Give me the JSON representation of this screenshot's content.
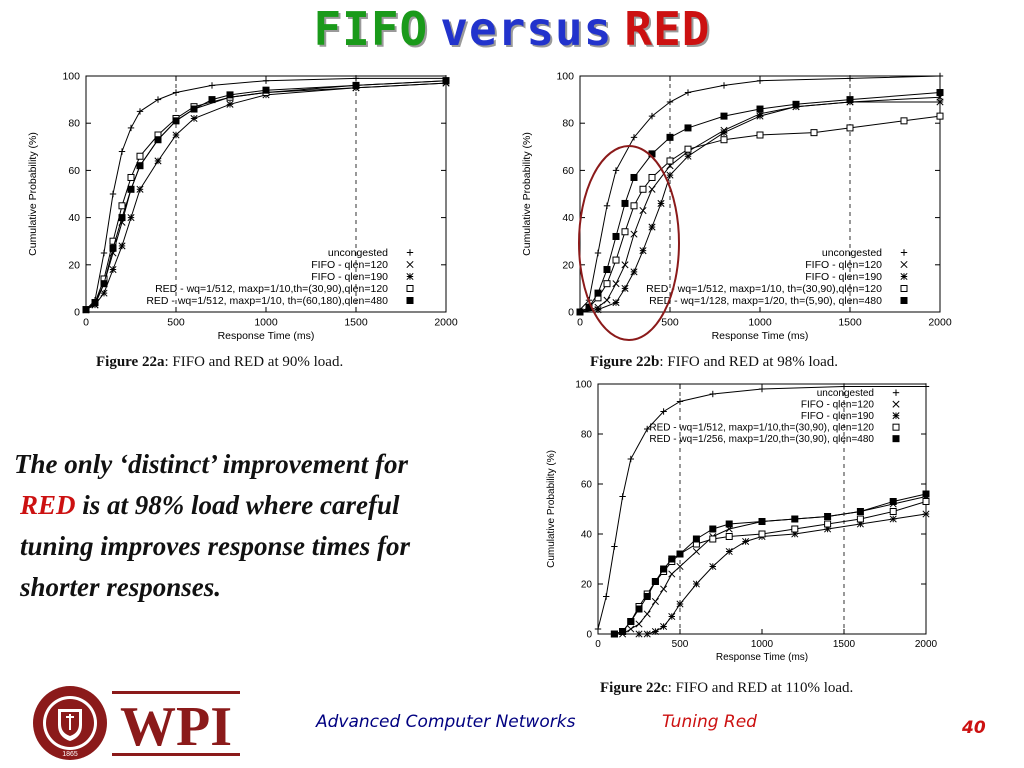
{
  "slide": {
    "title_parts": [
      {
        "text": "FIFO",
        "color": "#1a9a1a"
      },
      {
        "text": "versus",
        "color": "#2233cc"
      },
      {
        "text": "RED",
        "color": "#cc1111"
      }
    ],
    "body_lines": [
      [
        {
          "text": "The only ‘distinct’ improvement for",
          "color": "#111111"
        }
      ],
      [
        {
          "text": "RED",
          "color": "#cc1111"
        },
        {
          "text": " is at 98% load where careful",
          "color": "#111111"
        }
      ],
      [
        {
          "text": "tuning improves response times for",
          "color": "#111111"
        }
      ],
      [
        {
          "text": "shorter responses.",
          "color": "#111111"
        }
      ]
    ],
    "footer": {
      "course": "Advanced Computer Networks",
      "topic": "Tuning Red",
      "page": "40"
    },
    "logo": {
      "text": "WPI",
      "ring_text": "WORCESTER POLYTECHNIC INSTITUTE",
      "year": "1865",
      "color": "#8b1a1a"
    },
    "colors": {
      "accent_red": "#cc1111",
      "ellipse": "#8b1a1a",
      "footer_blue": "#000080"
    }
  },
  "chart_data": [
    {
      "type": "line",
      "caption_bold": "Figure 22a",
      "caption_rest": ": FIFO and RED at 90% load.",
      "xlabel": "Response Time (ms)",
      "ylabel": "Cumulative Probability (%)",
      "xlim": [
        0,
        2000
      ],
      "ylim": [
        0,
        100
      ],
      "xticks": [
        0,
        500,
        1000,
        1500,
        2000
      ],
      "yticks": [
        0,
        20,
        40,
        60,
        80,
        100
      ],
      "grid": "dashed at x=500,1500",
      "legend": "bottom-right",
      "series": [
        {
          "name": "uncongested",
          "marker": "+",
          "values": [
            [
              0,
              1
            ],
            [
              50,
              5
            ],
            [
              100,
              25
            ],
            [
              150,
              50
            ],
            [
              200,
              68
            ],
            [
              250,
              78
            ],
            [
              300,
              85
            ],
            [
              400,
              90
            ],
            [
              500,
              93
            ],
            [
              700,
              96
            ],
            [
              1000,
              98
            ],
            [
              1500,
              99
            ],
            [
              2000,
              99
            ]
          ]
        },
        {
          "name": "FIFO - qlen=120",
          "marker": "x",
          "values": [
            [
              0,
              1
            ],
            [
              50,
              3
            ],
            [
              100,
              12
            ],
            [
              150,
              25
            ],
            [
              200,
              38
            ],
            [
              250,
              52
            ],
            [
              300,
              62
            ],
            [
              400,
              73
            ],
            [
              500,
              81
            ],
            [
              600,
              86
            ],
            [
              800,
              91
            ],
            [
              1000,
              93
            ],
            [
              1500,
              95
            ],
            [
              2000,
              97
            ]
          ]
        },
        {
          "name": "FIFO - qlen=190",
          "marker": "*",
          "values": [
            [
              0,
              1
            ],
            [
              50,
              3
            ],
            [
              100,
              8
            ],
            [
              150,
              18
            ],
            [
              200,
              28
            ],
            [
              250,
              40
            ],
            [
              300,
              52
            ],
            [
              400,
              64
            ],
            [
              500,
              75
            ],
            [
              600,
              82
            ],
            [
              800,
              88
            ],
            [
              1000,
              92
            ],
            [
              1500,
              95
            ],
            [
              2000,
              97
            ]
          ]
        },
        {
          "name": "RED - wq=1/512, maxp=1/10,th=(30,90),qlen=120",
          "marker": "box",
          "values": [
            [
              0,
              1
            ],
            [
              50,
              4
            ],
            [
              100,
              14
            ],
            [
              150,
              30
            ],
            [
              200,
              45
            ],
            [
              250,
              57
            ],
            [
              300,
              66
            ],
            [
              400,
              75
            ],
            [
              500,
              82
            ],
            [
              600,
              87
            ],
            [
              800,
              91
            ],
            [
              1000,
              93
            ],
            [
              1500,
              96
            ],
            [
              2000,
              98
            ]
          ]
        },
        {
          "name": "RED - wq=1/512, maxp=1/10, th=(60,180),qlen=480",
          "marker": "fbox",
          "values": [
            [
              0,
              1
            ],
            [
              50,
              4
            ],
            [
              100,
              12
            ],
            [
              150,
              27
            ],
            [
              200,
              40
            ],
            [
              250,
              52
            ],
            [
              300,
              62
            ],
            [
              400,
              73
            ],
            [
              500,
              81
            ],
            [
              600,
              86
            ],
            [
              700,
              90
            ],
            [
              800,
              92
            ],
            [
              1000,
              94
            ],
            [
              1500,
              96
            ],
            [
              2000,
              98
            ]
          ]
        }
      ]
    },
    {
      "type": "line",
      "caption_bold": "Figure 22b",
      "caption_rest": ": FIFO and RED at 98% load.",
      "xlabel": "Response Time (ms)",
      "ylabel": "Cumulative Probability (%)",
      "xlim": [
        0,
        2000
      ],
      "ylim": [
        0,
        100
      ],
      "xticks": [
        0,
        500,
        1000,
        1500,
        2000
      ],
      "yticks": [
        0,
        20,
        40,
        60,
        80,
        100
      ],
      "grid": "dashed at x=500,1500",
      "legend": "bottom-right",
      "annotation": "red ellipse around 0-550 ms",
      "series": [
        {
          "name": "uncongested",
          "marker": "+",
          "values": [
            [
              0,
              1
            ],
            [
              50,
              5
            ],
            [
              100,
              25
            ],
            [
              150,
              45
            ],
            [
              200,
              60
            ],
            [
              300,
              74
            ],
            [
              400,
              83
            ],
            [
              500,
              89
            ],
            [
              600,
              93
            ],
            [
              800,
              96
            ],
            [
              1000,
              98
            ],
            [
              1500,
              99
            ],
            [
              2000,
              100
            ]
          ]
        },
        {
          "name": "FIFO - qlen=120",
          "marker": "x",
          "values": [
            [
              0,
              0
            ],
            [
              100,
              2
            ],
            [
              150,
              5
            ],
            [
              200,
              12
            ],
            [
              250,
              20
            ],
            [
              300,
              33
            ],
            [
              350,
              43
            ],
            [
              400,
              52
            ],
            [
              500,
              62
            ],
            [
              600,
              68
            ],
            [
              800,
              77
            ],
            [
              1000,
              84
            ],
            [
              1200,
              87
            ],
            [
              1500,
              89
            ],
            [
              2000,
              91
            ]
          ]
        },
        {
          "name": "FIFO - qlen=190",
          "marker": "*",
          "values": [
            [
              0,
              0
            ],
            [
              100,
              1
            ],
            [
              200,
              4
            ],
            [
              250,
              10
            ],
            [
              300,
              17
            ],
            [
              350,
              26
            ],
            [
              400,
              36
            ],
            [
              450,
              46
            ],
            [
              500,
              58
            ],
            [
              600,
              66
            ],
            [
              800,
              76
            ],
            [
              1000,
              83
            ],
            [
              1200,
              87
            ],
            [
              1500,
              89
            ],
            [
              2000,
              89
            ]
          ]
        },
        {
          "name": "RED - wq=1/512, maxp=1/10, th=(30,90),qlen=120",
          "marker": "box",
          "values": [
            [
              0,
              0
            ],
            [
              50,
              2
            ],
            [
              100,
              6
            ],
            [
              150,
              12
            ],
            [
              200,
              22
            ],
            [
              250,
              34
            ],
            [
              300,
              45
            ],
            [
              350,
              52
            ],
            [
              400,
              57
            ],
            [
              500,
              64
            ],
            [
              600,
              69
            ],
            [
              800,
              73
            ],
            [
              1000,
              75
            ],
            [
              1300,
              76
            ],
            [
              1500,
              78
            ],
            [
              1800,
              81
            ],
            [
              2000,
              83
            ]
          ]
        },
        {
          "name": "RED - wq=1/128, maxp=1/20, th=(5,90), qlen=480",
          "marker": "fbox",
          "values": [
            [
              0,
              0
            ],
            [
              50,
              2
            ],
            [
              100,
              8
            ],
            [
              150,
              18
            ],
            [
              200,
              32
            ],
            [
              250,
              46
            ],
            [
              300,
              57
            ],
            [
              400,
              67
            ],
            [
              500,
              74
            ],
            [
              600,
              78
            ],
            [
              800,
              83
            ],
            [
              1000,
              86
            ],
            [
              1200,
              88
            ],
            [
              1500,
              90
            ],
            [
              2000,
              93
            ]
          ]
        }
      ]
    },
    {
      "type": "line",
      "caption_bold": "Figure 22c",
      "caption_rest": ": FIFO and RED at 110% load.",
      "xlabel": "Response Time (ms)",
      "ylabel": "Cumulative Probability (%)",
      "xlim": [
        0,
        2000
      ],
      "ylim": [
        0,
        100
      ],
      "xticks": [
        0,
        500,
        1000,
        1500,
        2000
      ],
      "yticks": [
        0,
        20,
        40,
        60,
        80,
        100
      ],
      "grid": "dashed at x=500,1500",
      "legend": "top-right",
      "series": [
        {
          "name": "uncongested",
          "marker": "+",
          "values": [
            [
              0,
              2
            ],
            [
              50,
              15
            ],
            [
              100,
              35
            ],
            [
              150,
              55
            ],
            [
              200,
              70
            ],
            [
              300,
              82
            ],
            [
              400,
              89
            ],
            [
              500,
              93
            ],
            [
              700,
              96
            ],
            [
              1000,
              98
            ],
            [
              1500,
              99
            ],
            [
              2000,
              99
            ]
          ]
        },
        {
          "name": "FIFO - qlen=120",
          "marker": "x",
          "values": [
            [
              100,
              0
            ],
            [
              150,
              0
            ],
            [
              200,
              2
            ],
            [
              250,
              4
            ],
            [
              300,
              8
            ],
            [
              350,
              13
            ],
            [
              400,
              18
            ],
            [
              450,
              24
            ],
            [
              500,
              27
            ],
            [
              600,
              33
            ],
            [
              700,
              39
            ],
            [
              800,
              42
            ],
            [
              1000,
              45
            ],
            [
              1200,
              46
            ],
            [
              1400,
              47
            ],
            [
              1600,
              49
            ],
            [
              1800,
              52
            ],
            [
              2000,
              55
            ]
          ]
        },
        {
          "name": "FIFO - qlen=190",
          "marker": "*",
          "values": [
            [
              250,
              0
            ],
            [
              300,
              0
            ],
            [
              350,
              1
            ],
            [
              400,
              3
            ],
            [
              450,
              7
            ],
            [
              500,
              12
            ],
            [
              600,
              20
            ],
            [
              700,
              27
            ],
            [
              800,
              33
            ],
            [
              900,
              37
            ],
            [
              1000,
              39
            ],
            [
              1200,
              40
            ],
            [
              1400,
              42
            ],
            [
              1600,
              44
            ],
            [
              1800,
              46
            ],
            [
              2000,
              48
            ]
          ]
        },
        {
          "name": "RED - wq=1/512, maxp=1/10,th=(30,90), qlen=120",
          "marker": "box",
          "values": [
            [
              100,
              0
            ],
            [
              150,
              1
            ],
            [
              200,
              5
            ],
            [
              250,
              11
            ],
            [
              300,
              16
            ],
            [
              350,
              21
            ],
            [
              400,
              25
            ],
            [
              450,
              29
            ],
            [
              500,
              32
            ],
            [
              600,
              36
            ],
            [
              700,
              38
            ],
            [
              800,
              39
            ],
            [
              1000,
              40
            ],
            [
              1200,
              42
            ],
            [
              1400,
              44
            ],
            [
              1600,
              46
            ],
            [
              1800,
              49
            ],
            [
              2000,
              53
            ]
          ]
        },
        {
          "name": "RED - wq=1/256, maxp=1/20,th=(30,90), qlen=480",
          "marker": "fbox",
          "values": [
            [
              100,
              0
            ],
            [
              150,
              1
            ],
            [
              200,
              5
            ],
            [
              250,
              10
            ],
            [
              300,
              15
            ],
            [
              350,
              21
            ],
            [
              400,
              26
            ],
            [
              450,
              30
            ],
            [
              500,
              32
            ],
            [
              600,
              38
            ],
            [
              700,
              42
            ],
            [
              800,
              44
            ],
            [
              1000,
              45
            ],
            [
              1200,
              46
            ],
            [
              1400,
              47
            ],
            [
              1600,
              49
            ],
            [
              1800,
              53
            ],
            [
              2000,
              56
            ]
          ]
        }
      ]
    }
  ]
}
